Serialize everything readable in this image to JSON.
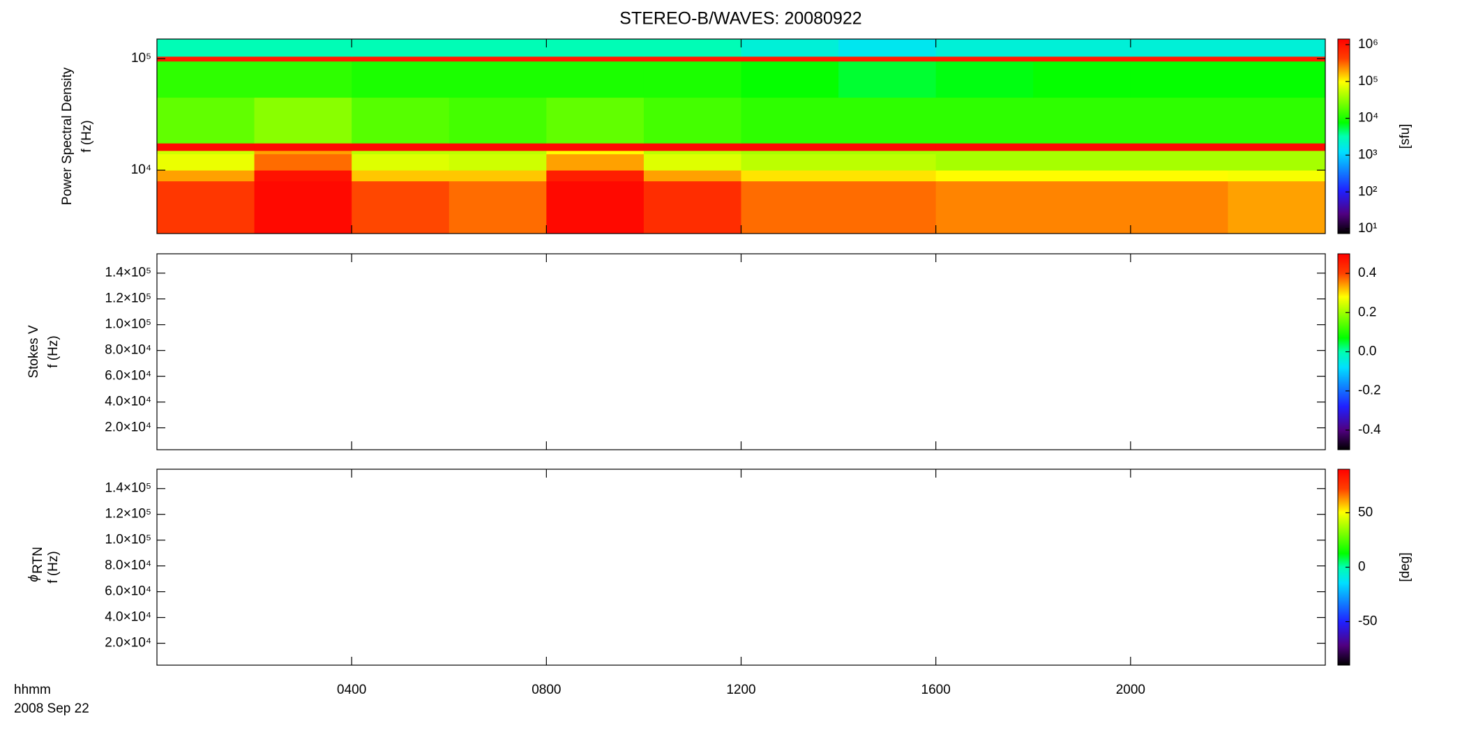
{
  "chart_data": {
    "type": "spectrogram",
    "title": "STEREO-B/WAVES: 20080922",
    "x_label": "hhmm",
    "x_date": "2008 Sep 22",
    "xlim": [
      0,
      24
    ],
    "xticks": [
      {
        "value": 4,
        "label": "0400"
      },
      {
        "value": 8,
        "label": "0800"
      },
      {
        "value": 12,
        "label": "1200"
      },
      {
        "value": 16,
        "label": "1600"
      },
      {
        "value": 20,
        "label": "2000"
      }
    ],
    "panels": [
      {
        "ylabel": [
          "Power Spectral Density",
          "f (Hz)"
        ],
        "ylog": true,
        "ylim": [
          2700,
          150000
        ],
        "yticks": [
          {
            "value": 10000,
            "label": "10⁴"
          },
          {
            "value": 100000,
            "label": "10⁵"
          }
        ],
        "colorbar": {
          "label": "[sfu]",
          "log": true,
          "lim": [
            7.4,
            1420000
          ],
          "ticks": [
            {
              "value": 10,
              "label": "10¹"
            },
            {
              "value": 100,
              "label": "10²"
            },
            {
              "value": 1000,
              "label": "10³"
            },
            {
              "value": 10000,
              "label": "10⁴"
            },
            {
              "value": 100000,
              "label": "10⁵"
            },
            {
              "value": 1000000,
              "label": "10⁶"
            }
          ]
        },
        "time_edges": [
          0,
          2,
          4,
          6,
          8,
          10,
          12,
          14,
          16,
          18,
          20,
          22,
          24
        ],
        "freq_edges": [
          2700,
          8000,
          10000,
          14000,
          15000,
          17500,
          45000,
          95000,
          105000,
          150000
        ],
        "z": [
          [
            500000,
            1200000,
            400000,
            300000,
            1200000,
            600000,
            300000,
            300000,
            250000,
            250000,
            250000,
            200000
          ],
          [
            200000,
            1000000,
            150000,
            150000,
            800000,
            200000,
            120000,
            120000,
            100000,
            100000,
            100000,
            90000
          ],
          [
            80000,
            300000,
            70000,
            60000,
            200000,
            70000,
            50000,
            50000,
            40000,
            40000,
            40000,
            40000
          ],
          [
            60000,
            200000,
            50000,
            50000,
            100000,
            50000,
            40000,
            40000,
            40000,
            40000,
            40000,
            40000
          ],
          [
            1200000,
            1200000,
            1200000,
            1200000,
            1200000,
            1200000,
            1200000,
            1200000,
            1200000,
            1200000,
            1200000,
            1200000
          ],
          [
            20000,
            30000,
            18000,
            15000,
            20000,
            15000,
            12000,
            12000,
            12000,
            12000,
            12000,
            12000
          ],
          [
            12000,
            12000,
            10000,
            10000,
            10000,
            10000,
            8000,
            6000,
            7000,
            8000,
            8000,
            8000
          ],
          [
            800000,
            800000,
            800000,
            800000,
            800000,
            800000,
            800000,
            800000,
            800000,
            800000,
            800000,
            800000
          ],
          [
            3000,
            3000,
            3000,
            3000,
            3000,
            3000,
            2000,
            1500,
            2000,
            2000,
            2000,
            2000
          ]
        ]
      },
      {
        "ylabel": [
          "Stokes V",
          "f (Hz)"
        ],
        "ylog": false,
        "ylim": [
          3000,
          155000
        ],
        "yticks": [
          {
            "value": 20000,
            "label": "2.0×10⁴"
          },
          {
            "value": 40000,
            "label": "4.0×10⁴"
          },
          {
            "value": 60000,
            "label": "6.0×10⁴"
          },
          {
            "value": 80000,
            "label": "8.0×10⁴"
          },
          {
            "value": 100000,
            "label": "1.0×10⁵"
          },
          {
            "value": 120000,
            "label": "1.2×10⁵"
          },
          {
            "value": 140000,
            "label": "1.4×10⁵"
          }
        ],
        "colorbar": {
          "log": false,
          "lim": [
            -0.5,
            0.5
          ],
          "ticks": [
            -0.4,
            -0.2,
            {
              "value": 0,
              "label": "0.0"
            },
            0.2,
            0.4
          ]
        }
      },
      {
        "ylabel_symbol": "ϕ",
        "ylabel_subscript": "RTN",
        "ylabel": [
          "f (Hz)"
        ],
        "ylog": false,
        "ylim": [
          3000,
          155000
        ],
        "yticks": [
          {
            "value": 20000,
            "label": "2.0×10⁴"
          },
          {
            "value": 40000,
            "label": "4.0×10⁴"
          },
          {
            "value": 60000,
            "label": "6.0×10⁴"
          },
          {
            "value": 80000,
            "label": "8.0×10⁴"
          },
          {
            "value": 100000,
            "label": "1.0×10⁵"
          },
          {
            "value": 120000,
            "label": "1.2×10⁵"
          },
          {
            "value": 140000,
            "label": "1.4×10⁵"
          }
        ],
        "colorbar": {
          "label": "[deg]",
          "log": false,
          "lim": [
            -90,
            90
          ],
          "ticks": [
            -50,
            0,
            50
          ]
        }
      }
    ]
  }
}
